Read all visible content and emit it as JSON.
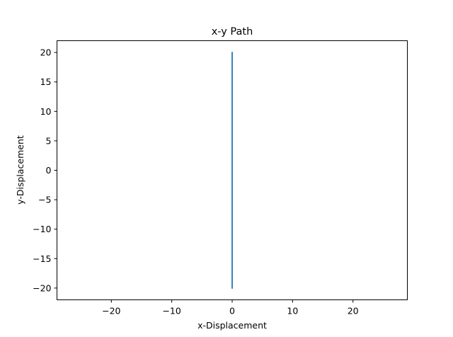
{
  "chart_data": {
    "type": "line",
    "title": "x-y Path",
    "xlabel": "x-Displacement",
    "ylabel": "y-Displacement",
    "xlim": [
      -29,
      29
    ],
    "ylim": [
      -22,
      22
    ],
    "xticks": [
      -20,
      -10,
      0,
      10,
      20
    ],
    "yticks": [
      -20,
      -15,
      -10,
      -5,
      0,
      5,
      10,
      15,
      20
    ],
    "xtick_labels": [
      "−20",
      "−10",
      "0",
      "10",
      "20"
    ],
    "ytick_labels": [
      "−20",
      "−15",
      "−10",
      "−5",
      "0",
      "5",
      "10",
      "15",
      "20"
    ],
    "grid": false,
    "series": [
      {
        "x": [
          0,
          0
        ],
        "y": [
          -20,
          20
        ],
        "color": "#1f77b4"
      }
    ]
  }
}
